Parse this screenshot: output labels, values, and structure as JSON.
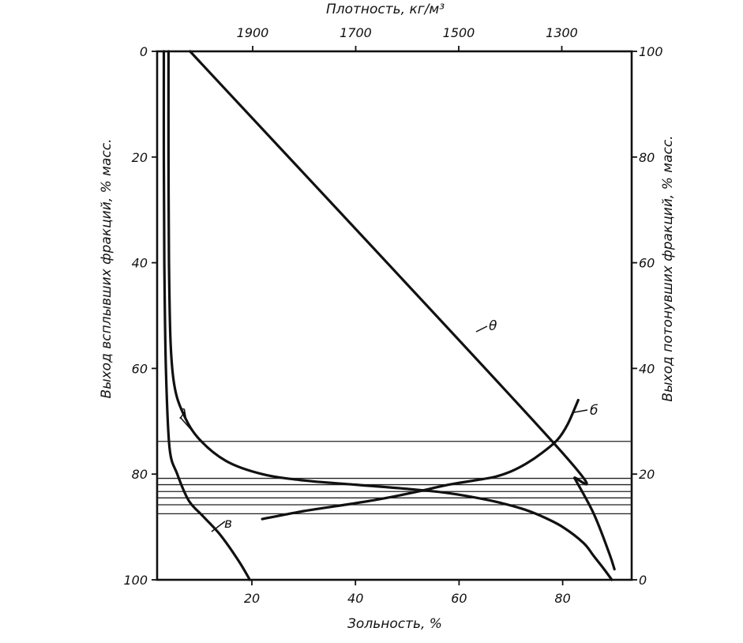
{
  "chart_data": {
    "type": "line",
    "title": "",
    "xlabel_bottom": "Зольность, %",
    "xlabel_top": "Плотность, кг/м³",
    "ylabel_left": "Выход всплывших фракций, % масс.",
    "ylabel_right": "Выход потонувших фракций, % масс.",
    "x_bottom": {
      "ticks": [
        20,
        40,
        60,
        80
      ],
      "range": [
        0,
        93
      ]
    },
    "x_top": {
      "ticks": [
        1900,
        1700,
        1500,
        1300
      ]
    },
    "y_left": {
      "ticks": [
        0,
        20,
        40,
        60,
        80,
        100
      ],
      "range": [
        0,
        100
      ],
      "direction": "downward"
    },
    "y_right": {
      "ticks": [
        100,
        80,
        60,
        40,
        20,
        0
      ],
      "range": [
        0,
        100
      ],
      "direction": "upward"
    },
    "grid": false,
    "series": [
      {
        "name": "λ",
        "x": [
          3.9,
          3.9,
          4.0,
          4.3,
          5.0,
          6.5,
          9.5,
          15,
          22,
          30,
          40,
          50,
          58,
          66,
          72,
          76,
          80,
          84,
          86,
          88,
          89.5
        ],
        "y": [
          0,
          20,
          40,
          55,
          63,
          68,
          73,
          77.5,
          80,
          81.2,
          82,
          82.8,
          83.6,
          85,
          86.5,
          88,
          90,
          93,
          95.5,
          98,
          100
        ]
      },
      {
        "name": "в",
        "x": [
          3.0,
          3.0,
          3.1,
          3.4,
          4.1,
          5.6,
          7.8,
          10.6,
          13.9,
          17.5,
          19.6
        ],
        "y": [
          0,
          20,
          40,
          60,
          75,
          80,
          85,
          88,
          91.5,
          96.5,
          100
        ]
      },
      {
        "name": "б",
        "x": [
          22,
          30,
          40,
          46,
          52,
          58,
          63,
          67,
          70,
          73,
          76,
          79,
          81,
          83
        ],
        "y": [
          88.5,
          87,
          85.5,
          84.5,
          83.3,
          82,
          81.2,
          80.5,
          79.5,
          78,
          76,
          73.5,
          70.5,
          66
        ]
      },
      {
        "name": "θ",
        "x": [
          8.06,
          77.98,
          82.33
        ],
        "y": [
          0,
          73.8,
          80.8
        ]
      },
      {
        "name": "",
        "x": [
          82.33,
          86.0,
          89.0,
          90.0
        ],
        "y": [
          80.8,
          87.5,
          95,
          98
        ]
      }
    ],
    "horizontal_lines_y": [
      73.8,
      80.8,
      82.0,
      83.3,
      84.5,
      85.8,
      87.5
    ]
  }
}
